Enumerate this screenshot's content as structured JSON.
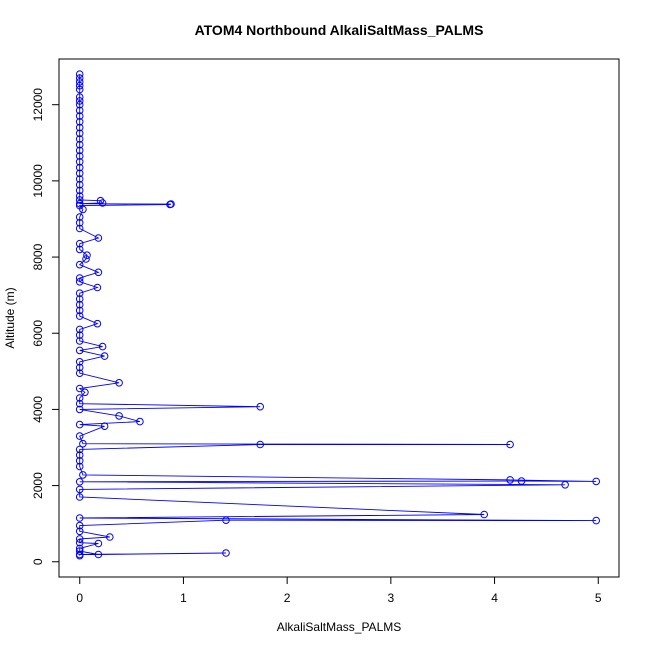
{
  "chart_data": {
    "type": "line",
    "title": "ATOM4 Northbound AlkaliSaltMass_PALMS",
    "xlabel": "AlkaliSaltMass_PALMS",
    "ylabel": "Altitude (m)",
    "xlim": [
      -0.2,
      5.2
    ],
    "ylim": [
      -400,
      13200
    ],
    "x_ticks": [
      0,
      1,
      2,
      3,
      4,
      5
    ],
    "y_ticks": [
      0,
      2000,
      4000,
      6000,
      8000,
      10000,
      12000
    ],
    "grid": false,
    "marker": "open-circle",
    "series_color": "#0000ff",
    "series": [
      {
        "points": [
          [
            0.0,
            12800
          ],
          [
            0.0,
            12700
          ],
          [
            0.0,
            12600
          ],
          [
            0.0,
            12500
          ],
          [
            0.0,
            12400
          ],
          [
            0.0,
            12200
          ],
          [
            0.0,
            12100
          ],
          [
            0.0,
            12000
          ],
          [
            0.0,
            11850
          ],
          [
            0.0,
            11700
          ],
          [
            0.0,
            11550
          ],
          [
            0.0,
            11400
          ],
          [
            0.0,
            11250
          ],
          [
            0.0,
            11100
          ],
          [
            0.0,
            10950
          ],
          [
            0.0,
            10800
          ],
          [
            0.0,
            10650
          ],
          [
            0.0,
            10500
          ],
          [
            0.0,
            10350
          ],
          [
            0.0,
            10200
          ],
          [
            0.0,
            10050
          ],
          [
            0.0,
            9900
          ],
          [
            0.0,
            9750
          ],
          [
            0.0,
            9600
          ],
          [
            0.0,
            9500
          ],
          [
            0.2,
            9480
          ],
          [
            0.22,
            9420
          ],
          [
            0.0,
            9400
          ],
          [
            0.88,
            9390
          ],
          [
            0.87,
            9380
          ],
          [
            0.0,
            9350
          ],
          [
            0.03,
            9250
          ],
          [
            0.0,
            9050
          ],
          [
            0.0,
            8900
          ],
          [
            0.0,
            8750
          ],
          [
            0.18,
            8500
          ],
          [
            0.0,
            8350
          ],
          [
            0.0,
            8200
          ],
          [
            0.07,
            8050
          ],
          [
            0.06,
            7950
          ],
          [
            0.0,
            7800
          ],
          [
            0.18,
            7600
          ],
          [
            0.0,
            7450
          ],
          [
            0.0,
            7350
          ],
          [
            0.17,
            7200
          ],
          [
            0.0,
            7050
          ],
          [
            0.0,
            6900
          ],
          [
            0.0,
            6750
          ],
          [
            0.0,
            6600
          ],
          [
            0.0,
            6450
          ],
          [
            0.17,
            6250
          ],
          [
            0.0,
            6100
          ],
          [
            0.0,
            5950
          ],
          [
            0.0,
            5800
          ],
          [
            0.22,
            5650
          ],
          [
            0.0,
            5550
          ],
          [
            0.24,
            5400
          ],
          [
            0.0,
            5250
          ],
          [
            0.0,
            5100
          ],
          [
            0.0,
            4950
          ],
          [
            0.38,
            4700
          ],
          [
            0.0,
            4550
          ],
          [
            0.05,
            4450
          ],
          [
            0.0,
            4300
          ],
          [
            0.0,
            4150
          ],
          [
            1.74,
            4070
          ],
          [
            0.0,
            4000
          ],
          [
            0.38,
            3830
          ],
          [
            0.58,
            3680
          ],
          [
            0.0,
            3600
          ],
          [
            0.24,
            3560
          ],
          [
            0.0,
            3300
          ],
          [
            0.03,
            3100
          ],
          [
            4.15,
            3080
          ],
          [
            1.74,
            3080
          ],
          [
            0.0,
            2950
          ],
          [
            0.0,
            2800
          ],
          [
            0.0,
            2650
          ],
          [
            0.0,
            2500
          ],
          [
            0.03,
            2280
          ],
          [
            4.15,
            2150
          ],
          [
            4.98,
            2110
          ],
          [
            4.26,
            2120
          ],
          [
            0.0,
            2100
          ],
          [
            4.68,
            2020
          ],
          [
            0.0,
            1900
          ],
          [
            0.0,
            1700
          ],
          [
            3.9,
            1240
          ],
          [
            0.0,
            1150
          ],
          [
            4.98,
            1080
          ],
          [
            1.41,
            1090
          ],
          [
            0.0,
            950
          ],
          [
            0.0,
            800
          ],
          [
            0.29,
            650
          ],
          [
            0.0,
            600
          ],
          [
            0.0,
            500
          ],
          [
            0.18,
            480
          ],
          [
            0.0,
            350
          ],
          [
            0.0,
            280
          ],
          [
            0.18,
            190
          ],
          [
            1.41,
            230
          ],
          [
            0.0,
            190
          ],
          [
            0.0,
            160
          ]
        ]
      }
    ]
  }
}
